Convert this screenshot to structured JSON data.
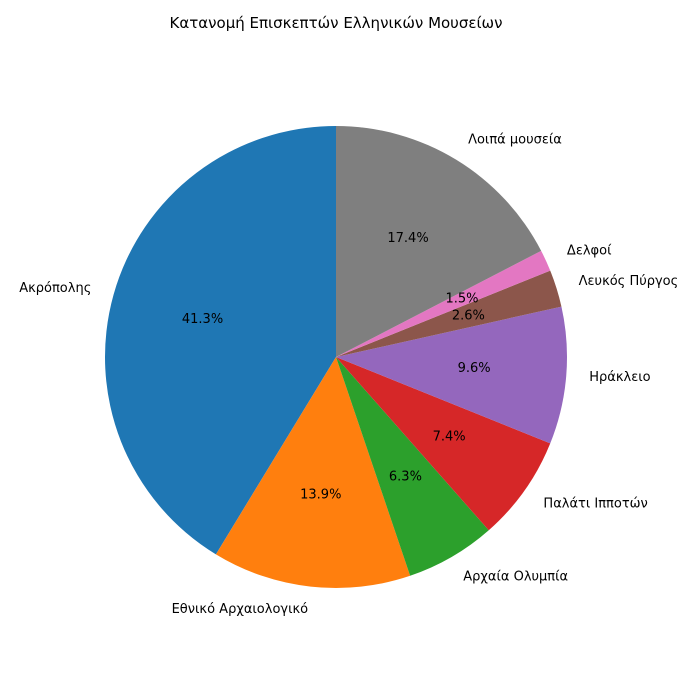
{
  "chart_data": {
    "type": "pie",
    "title": "Κατανομή Επισκεπτών Ελληνικών Μουσείων",
    "start_angle_deg": 90,
    "direction": "counterclockwise",
    "slices": [
      {
        "label": "Ακρόπολης",
        "value": 41.3,
        "pct_text": "41.3%",
        "color": "#1f77b4"
      },
      {
        "label": "Εθνικό Αρχαιολογικό",
        "value": 13.9,
        "pct_text": "13.9%",
        "color": "#ff7f0e"
      },
      {
        "label": "Αρχαία Ολυμπία",
        "value": 6.3,
        "pct_text": "6.3%",
        "color": "#2ca02c"
      },
      {
        "label": "Παλάτι Ιπποτών",
        "value": 7.4,
        "pct_text": "7.4%",
        "color": "#d62728"
      },
      {
        "label": "Ηράκλειο",
        "value": 9.6,
        "pct_text": "9.6%",
        "color": "#9467bd"
      },
      {
        "label": "Λευκός Πύργος",
        "value": 2.6,
        "pct_text": "2.6%",
        "color": "#8c564b"
      },
      {
        "label": "Δελφοί",
        "value": 1.5,
        "pct_text": "1.5%",
        "color": "#e377c2"
      },
      {
        "label": "Λοιπά μουσεία",
        "value": 17.4,
        "pct_text": "17.4%",
        "color": "#7f7f7f"
      }
    ]
  }
}
